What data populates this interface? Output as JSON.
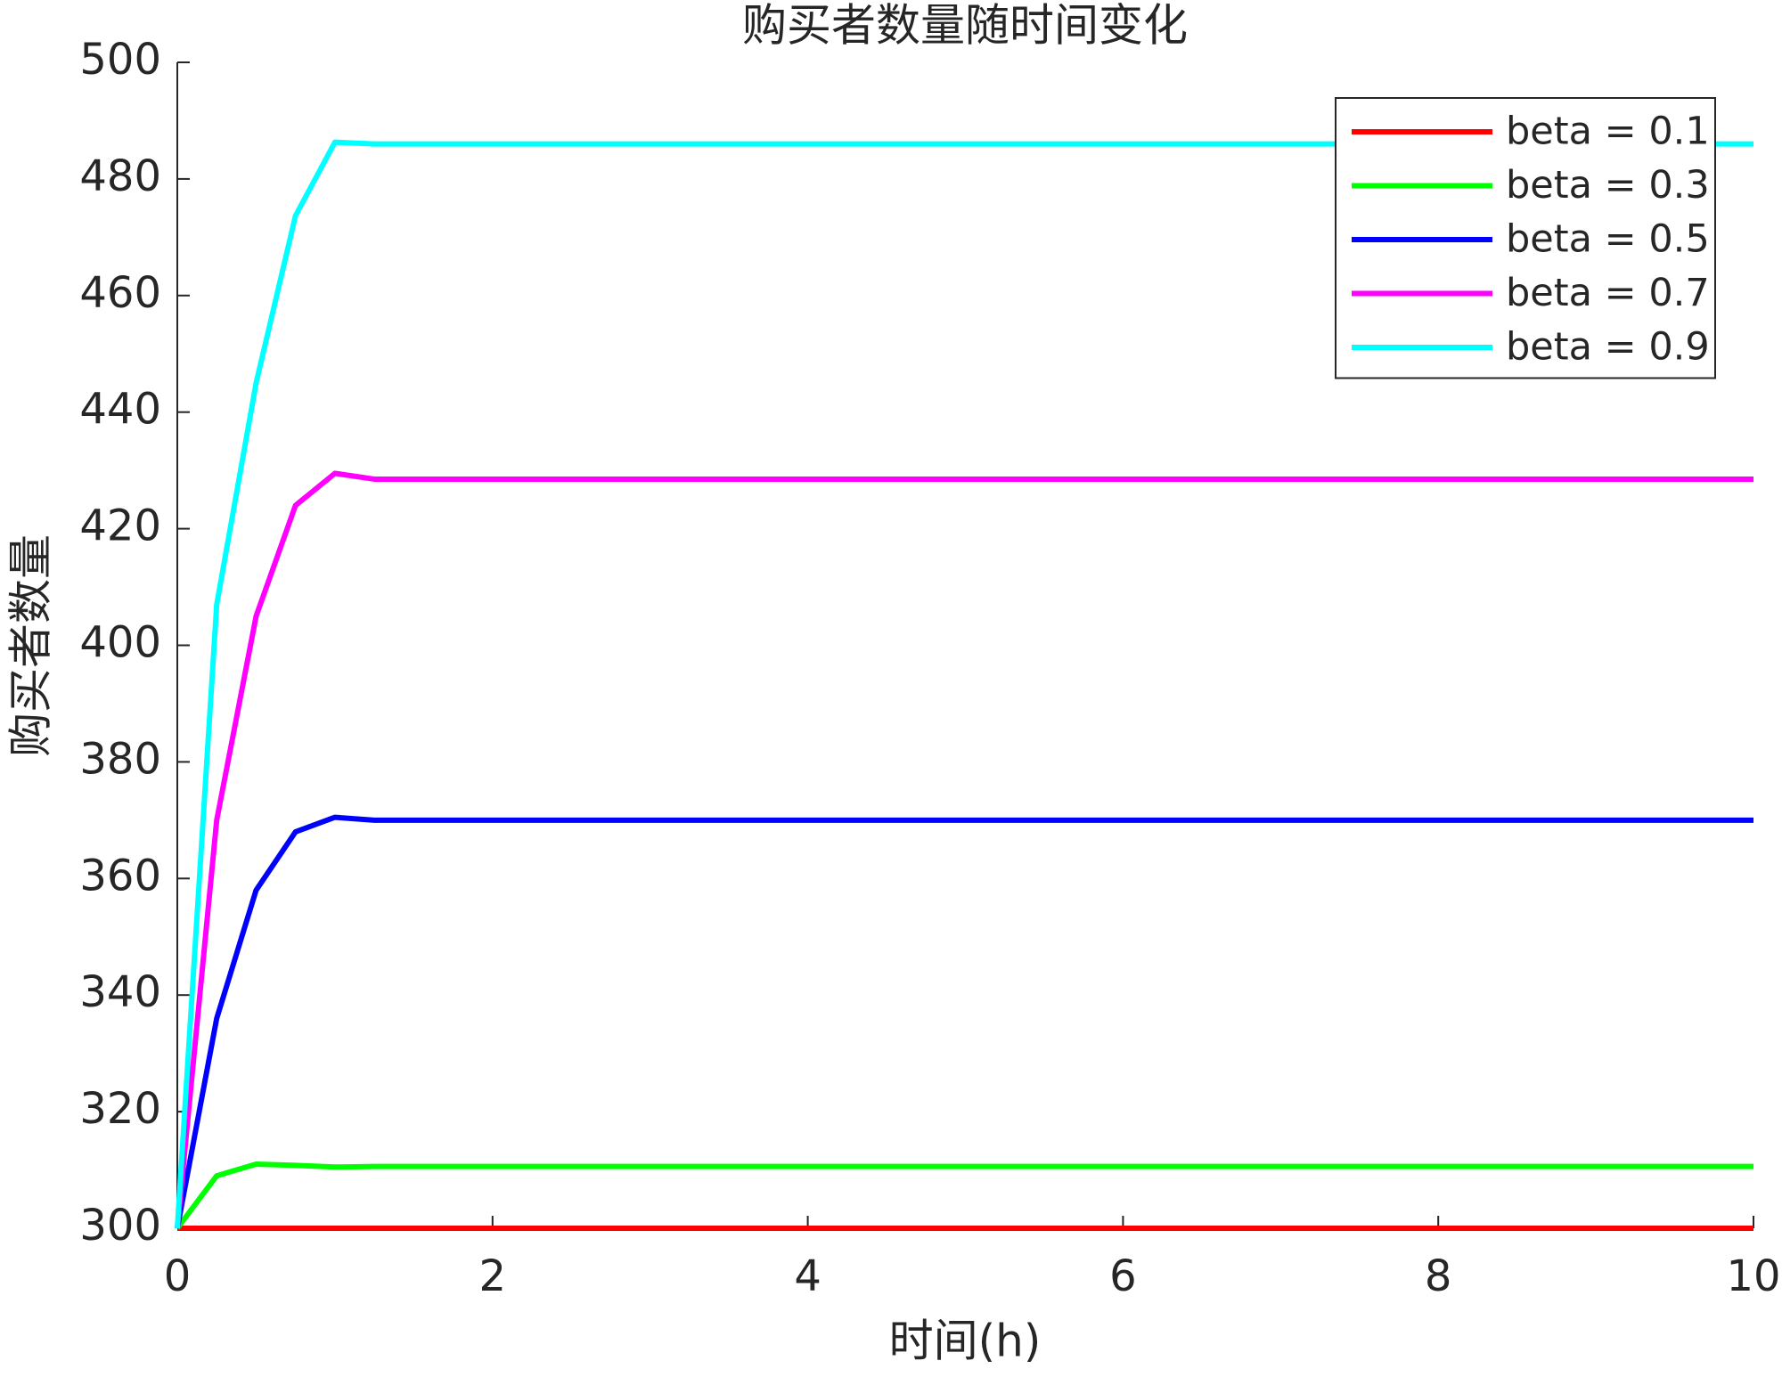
{
  "chart_data": {
    "type": "line",
    "title": "购买者数量随时间变化",
    "x_label": "时间(h)",
    "y_label": "购买者数量",
    "x": [
      0,
      0.25,
      0.5,
      0.75,
      1,
      1.25,
      10
    ],
    "series": [
      {
        "name": "beta = 0.1",
        "color": "#ff0000",
        "values": [
          300,
          300,
          300,
          300,
          300,
          300,
          300
        ]
      },
      {
        "name": "beta = 0.3",
        "color": "#00ff00",
        "values": [
          300,
          309,
          311,
          310.8,
          310.5,
          310.6,
          310.6
        ]
      },
      {
        "name": "beta = 0.5",
        "color": "#0000ff",
        "values": [
          300,
          336,
          358,
          368,
          370.5,
          370,
          370
        ]
      },
      {
        "name": "beta = 0.7",
        "color": "#ff00ff",
        "values": [
          300,
          370,
          405,
          424,
          429.5,
          428.5,
          428.5
        ]
      },
      {
        "name": "beta = 0.9",
        "color": "#00ffff",
        "values": [
          300,
          407,
          445,
          473.7,
          486.3,
          486,
          486
        ]
      }
    ],
    "xlim": [
      0,
      10
    ],
    "xticks": [
      0,
      2,
      4,
      6,
      8,
      10
    ],
    "ylim": [
      300,
      500
    ],
    "yticks": [
      300,
      320,
      340,
      360,
      380,
      400,
      420,
      440,
      460,
      480,
      500
    ],
    "legend": "upper right"
  }
}
